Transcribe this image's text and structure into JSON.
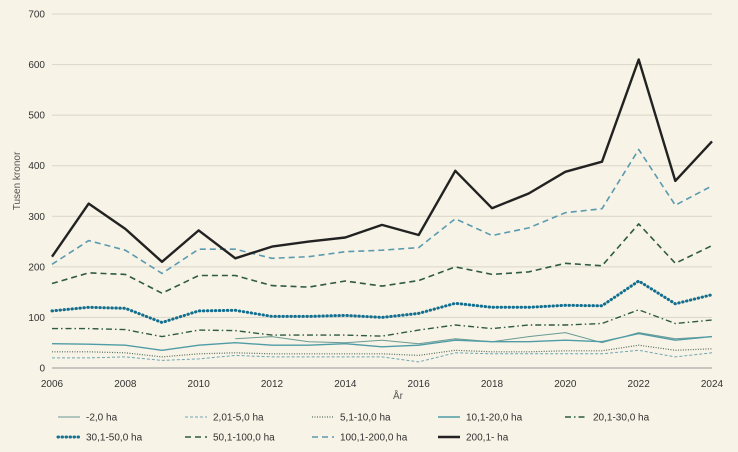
{
  "chart_data": {
    "type": "line",
    "title": "",
    "xlabel": "År",
    "ylabel": "Tusen kronor",
    "ylim": [
      0,
      700
    ],
    "yticks": [
      0,
      100,
      200,
      300,
      400,
      500,
      600,
      700
    ],
    "xticks": [
      2006,
      2008,
      2010,
      2012,
      2014,
      2016,
      2018,
      2020,
      2022,
      2024
    ],
    "x": [
      2006,
      2007,
      2008,
      2009,
      2010,
      2011,
      2012,
      2013,
      2014,
      2015,
      2016,
      2017,
      2018,
      2019,
      2020,
      2021,
      2022,
      2023,
      2024
    ],
    "grid": "horizontal",
    "legend_position": "bottom",
    "series": [
      {
        "name": "-2,0 ha",
        "color": "#6a9a94",
        "style": "solid-thin",
        "values": [
          null,
          null,
          null,
          null,
          null,
          58,
          62,
          52,
          50,
          55,
          48,
          58,
          52,
          62,
          70,
          50,
          70,
          58,
          62
        ]
      },
      {
        "name": "2,01-5,0 ha",
        "color": "#6fa7b6",
        "style": "dashed-thin",
        "values": [
          20,
          20,
          22,
          15,
          18,
          25,
          22,
          22,
          22,
          22,
          12,
          30,
          28,
          28,
          28,
          28,
          35,
          22,
          30
        ]
      },
      {
        "name": "5,1-10,0 ha",
        "color": "#556b5f",
        "style": "dotted-thin",
        "values": [
          32,
          32,
          30,
          22,
          28,
          30,
          28,
          28,
          28,
          28,
          25,
          35,
          32,
          32,
          34,
          34,
          45,
          35,
          38
        ]
      },
      {
        "name": "10,1-20,0 ha",
        "color": "#4f9ca6",
        "style": "solid",
        "values": [
          48,
          47,
          45,
          35,
          45,
          50,
          45,
          45,
          48,
          42,
          45,
          55,
          52,
          52,
          55,
          52,
          68,
          55,
          62
        ]
      },
      {
        "name": "20,1-30,0 ha",
        "color": "#2f5a44",
        "style": "dashdot",
        "values": [
          78,
          78,
          76,
          62,
          75,
          74,
          65,
          65,
          65,
          63,
          75,
          85,
          78,
          85,
          85,
          88,
          115,
          88,
          95
        ]
      },
      {
        "name": "30,1-50,0 ha",
        "color": "#136f90",
        "style": "dotted-bold",
        "values": [
          113,
          120,
          118,
          90,
          113,
          114,
          102,
          102,
          104,
          100,
          108,
          128,
          120,
          120,
          124,
          123,
          172,
          127,
          145
        ]
      },
      {
        "name": "50,1-100,0 ha",
        "color": "#2f5a44",
        "style": "dashed",
        "values": [
          167,
          188,
          185,
          148,
          183,
          183,
          163,
          160,
          172,
          162,
          173,
          200,
          185,
          190,
          207,
          202,
          285,
          207,
          242
        ]
      },
      {
        "name": "100,1-200,0 ha",
        "color": "#5a9ab0",
        "style": "dashed",
        "values": [
          205,
          252,
          233,
          187,
          235,
          235,
          217,
          220,
          230,
          233,
          238,
          295,
          262,
          277,
          307,
          315,
          432,
          322,
          360
        ]
      },
      {
        "name": "200,1- ha",
        "color": "#222222",
        "style": "solid-bold",
        "values": [
          220,
          325,
          275,
          210,
          272,
          217,
          240,
          250,
          258,
          283,
          263,
          390,
          316,
          345,
          388,
          408,
          610,
          370,
          448
        ]
      }
    ]
  }
}
